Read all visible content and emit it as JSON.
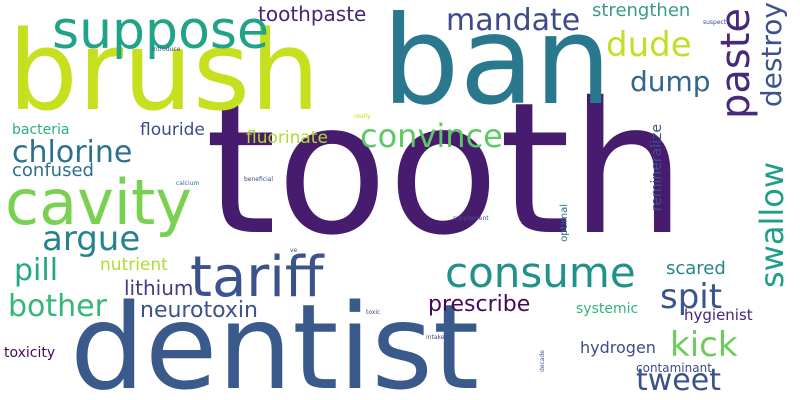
{
  "words": {
    "tooth": "tooth",
    "dentist": "dentist",
    "ban": "ban",
    "brush": "brush",
    "cavity": "cavity",
    "suppose": "suppose",
    "tariff": "tariff",
    "consume": "consume",
    "mandate": "mandate",
    "toothpaste": "toothpaste",
    "strengthen": "strengthen",
    "dude": "dude",
    "dump": "dump",
    "paste": "paste",
    "swallow": "swallow",
    "destroy": "destroy",
    "chlorine": "chlorine",
    "convince": "convince",
    "argue": "argue",
    "pill": "pill",
    "bother": "bother",
    "confused": "confused",
    "flouride": "flouride",
    "fluorinate": "fluorinate",
    "bacteria": "bacteria",
    "neurotoxin": "neurotoxin",
    "lithium": "lithium",
    "nutrient": "nutrient",
    "prescribe": "prescribe",
    "spit": "spit",
    "kick": "kick",
    "tweet": "tweet",
    "scared": "scared",
    "hygienist": "hygienist",
    "systemic": "systemic",
    "hydrogen": "hydrogen",
    "contaminant": "contaminant",
    "toxicity": "toxicity",
    "remineralize": "remineralize",
    "optimal": "optimal",
    "supplement": "supplement",
    "beneficial": "beneficial",
    "calcium": "calcium",
    "introduce": "introduce",
    "suspect": "suspect",
    "really": "really",
    "ve": "ve",
    "toxic": "toxic",
    "intake": "intake",
    "decade": "decade"
  }
}
